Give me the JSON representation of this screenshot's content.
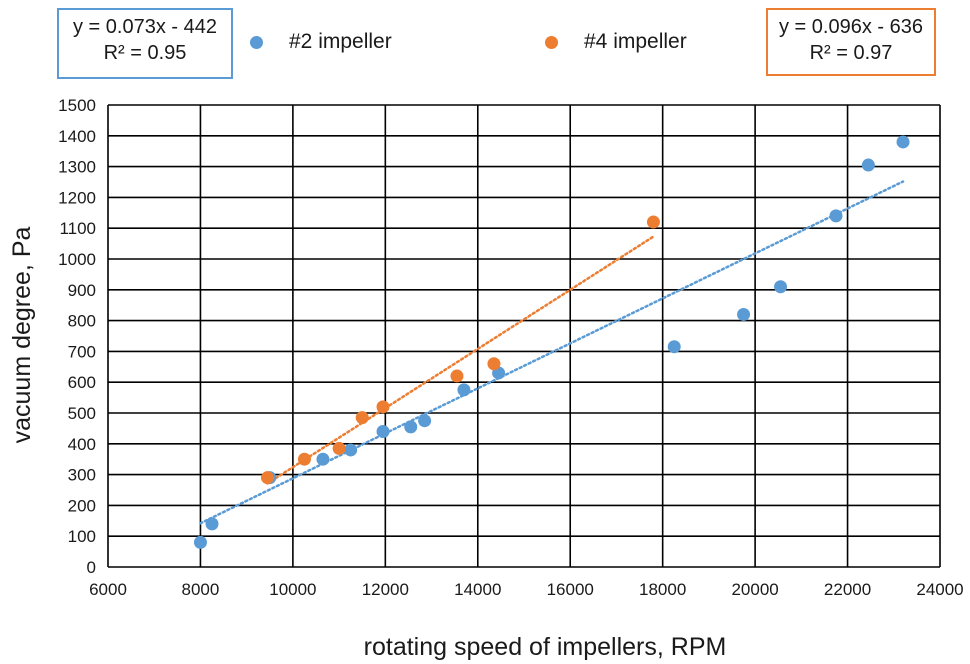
{
  "chart_data": {
    "type": "scatter",
    "title": "",
    "xlabel": "rotating speed of impellers, RPM",
    "ylabel": "vacuum degree, Pa",
    "xlim": [
      6000,
      24000
    ],
    "ylim": [
      0,
      1500
    ],
    "xticks": [
      6000,
      8000,
      10000,
      12000,
      14000,
      16000,
      18000,
      20000,
      22000,
      24000
    ],
    "yticks": [
      0,
      100,
      200,
      300,
      400,
      500,
      600,
      700,
      800,
      900,
      1000,
      1100,
      1200,
      1300,
      1400,
      1500
    ],
    "grid": true,
    "legend_position": "top",
    "series": [
      {
        "name": "#2 impeller",
        "color": "#5b9bd5",
        "x": [
          8000,
          8250,
          9500,
          10650,
          11250,
          11950,
          12550,
          12850,
          13700,
          14450,
          18250,
          19750,
          20550,
          21750,
          22450,
          23200
        ],
        "y": [
          80,
          140,
          290,
          350,
          380,
          440,
          455,
          475,
          575,
          630,
          715,
          820,
          910,
          1140,
          1305,
          1380
        ],
        "trendline": {
          "slope": 0.073,
          "intercept": -442,
          "x_range": [
            8000,
            23200
          ]
        },
        "equation": "y = 0.073x - 442",
        "r2": "R² = 0.95"
      },
      {
        "name": "#4 impeller",
        "color": "#ed7d31",
        "x": [
          9450,
          10250,
          11000,
          11500,
          11950,
          13550,
          14350,
          17800
        ],
        "y": [
          290,
          350,
          385,
          485,
          520,
          620,
          660,
          1120
        ],
        "trendline": {
          "slope": 0.096,
          "intercept": -636,
          "x_range": [
            9450,
            17800
          ]
        },
        "equation": "y = 0.096x - 636",
        "r2": "R² = 0.97"
      }
    ]
  }
}
